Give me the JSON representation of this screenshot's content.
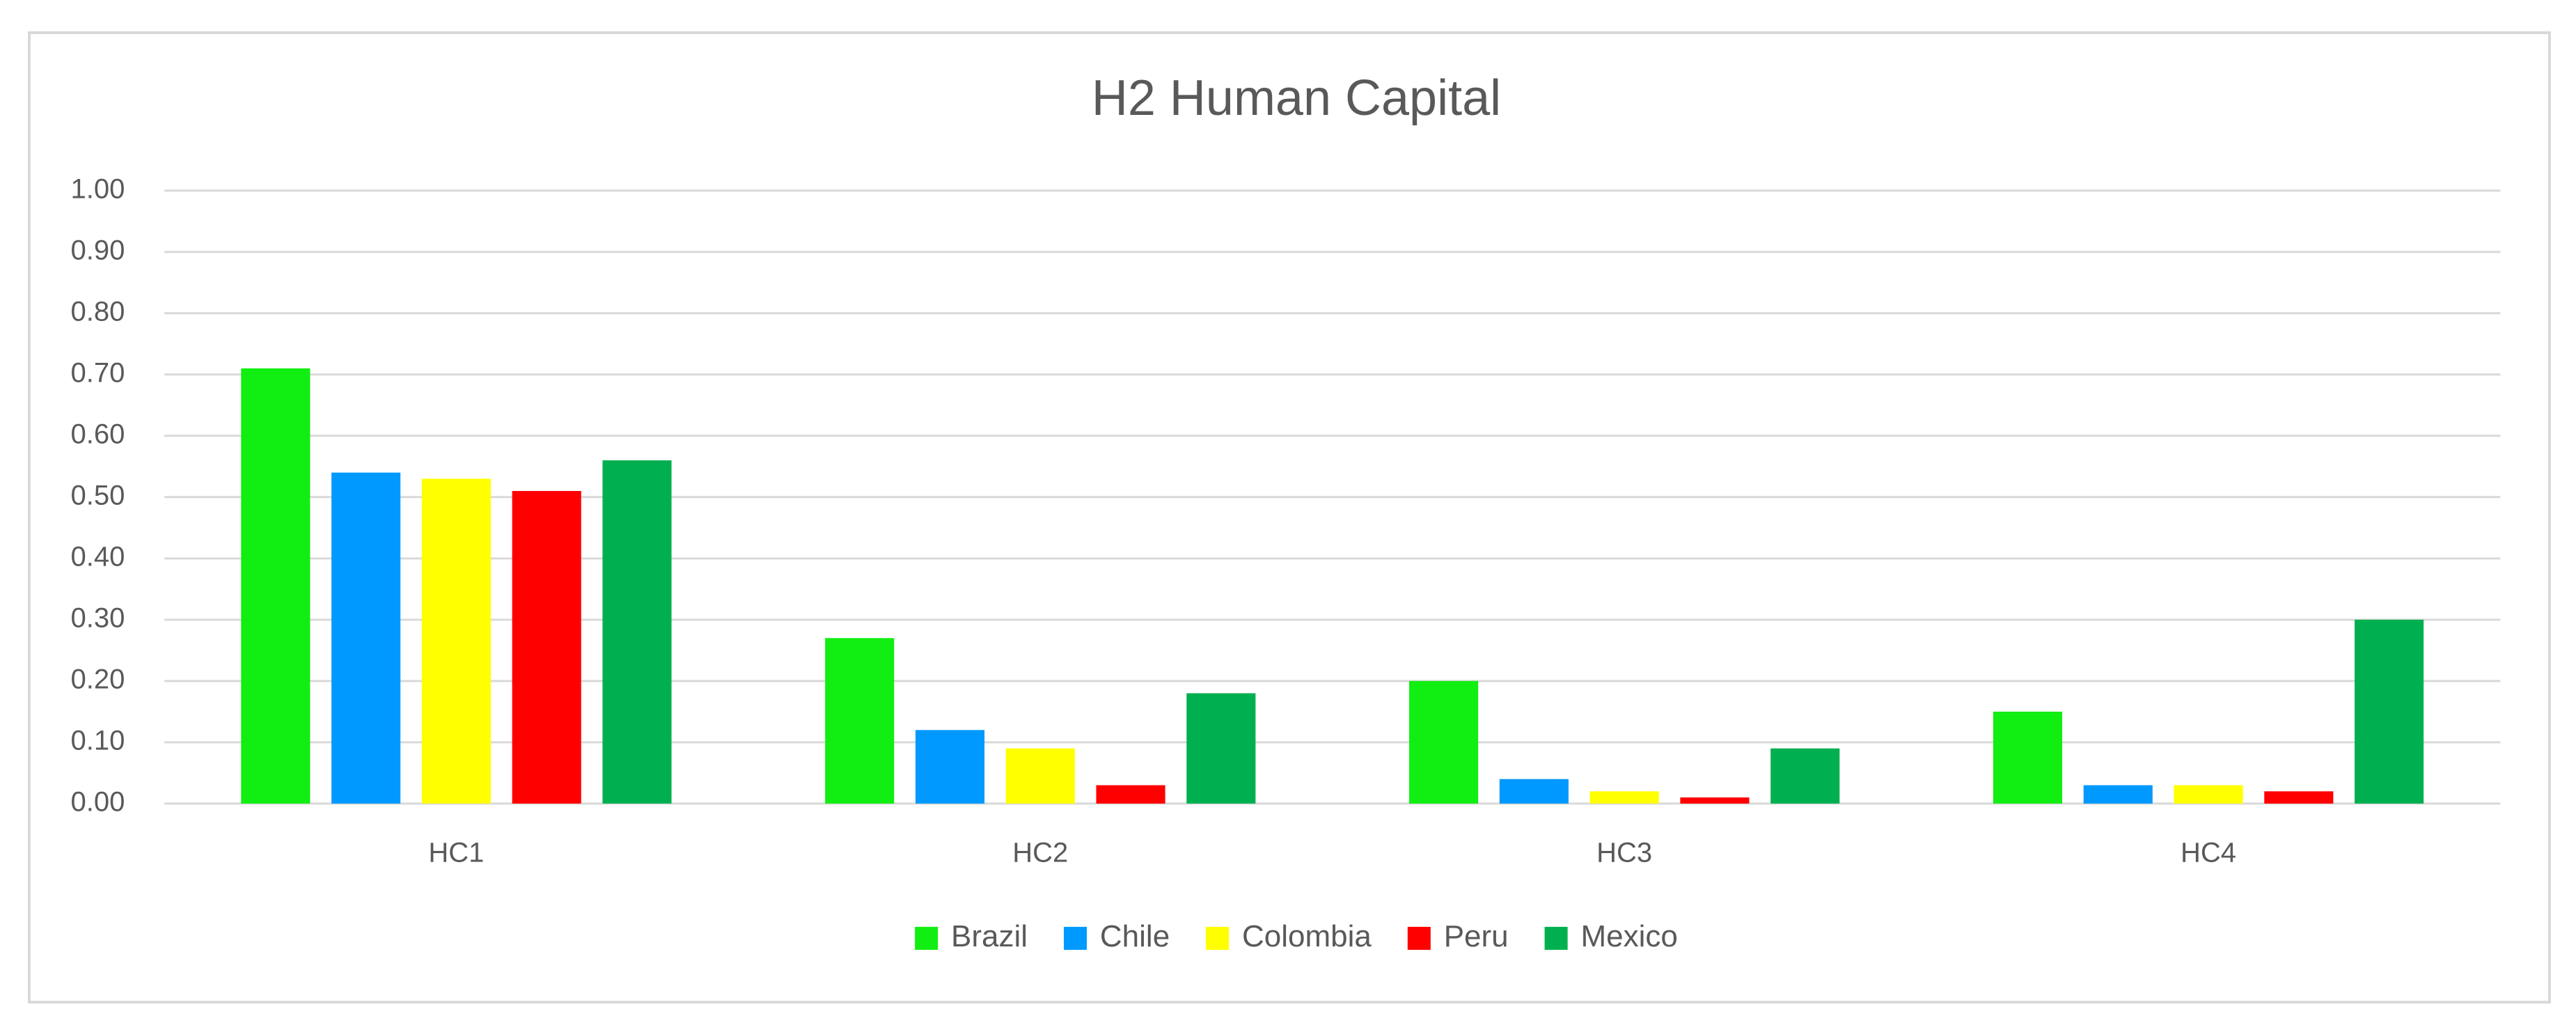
{
  "chart_data": {
    "type": "bar",
    "title": "H2 Human Capital",
    "categories": [
      "HC1",
      "HC2",
      "HC3",
      "HC4"
    ],
    "series": [
      {
        "name": "Brazil",
        "color": "#11ee11",
        "values": [
          0.71,
          0.27,
          0.2,
          0.15
        ]
      },
      {
        "name": "Chile",
        "color": "#0099ff",
        "values": [
          0.54,
          0.12,
          0.04,
          0.03
        ]
      },
      {
        "name": "Colombia",
        "color": "#ffff00",
        "values": [
          0.53,
          0.09,
          0.02,
          0.03
        ]
      },
      {
        "name": "Peru",
        "color": "#ff0000",
        "values": [
          0.51,
          0.03,
          0.01,
          0.02
        ]
      },
      {
        "name": "Mexico",
        "color": "#00b050",
        "values": [
          0.56,
          0.18,
          0.09,
          0.3
        ]
      }
    ],
    "ylim": [
      0,
      1
    ],
    "yticks": [
      {
        "value": 0,
        "label": "0.00"
      },
      {
        "value": 0.1,
        "label": "0.10"
      },
      {
        "value": 0.2,
        "label": "0.20"
      },
      {
        "value": 0.3,
        "label": "0.30"
      },
      {
        "value": 0.4,
        "label": "0.40"
      },
      {
        "value": 0.5,
        "label": "0.50"
      },
      {
        "value": 0.6,
        "label": "0.60"
      },
      {
        "value": 0.7,
        "label": "0.70"
      },
      {
        "value": 0.8,
        "label": "0.80"
      },
      {
        "value": 0.9,
        "label": "0.90"
      },
      {
        "value": 1,
        "label": "1.00"
      }
    ],
    "grid": true,
    "legend": "bottom"
  }
}
